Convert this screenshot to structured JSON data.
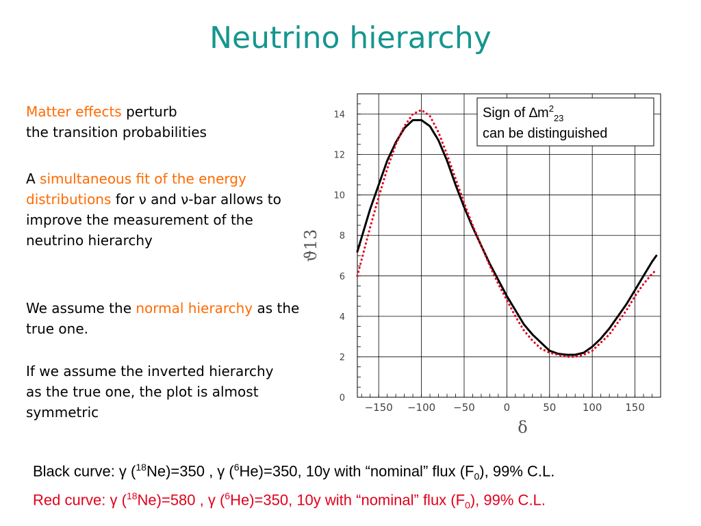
{
  "title": "Neutrino hierarchy",
  "left": {
    "p1": {
      "a": "Matter effects",
      "b": " perturb",
      "c": "the transition probabilities"
    },
    "p2": {
      "a": "A ",
      "b": "simultaneous fit of the energy distributions",
      "c": " for ν and ν-bar allows to improve the measurement of the neutrino hierarchy"
    },
    "p3": {
      "a": "We assume the ",
      "b": "normal hierarchy",
      "c": " as the true one."
    },
    "p4": {
      "a": "If we assume the inverted hierarchy as the true one, the plot is almost symmetric"
    }
  },
  "annotation": {
    "line1": "Sign of ∆m",
    "sup": "2",
    "sub": "23",
    "line2": "can be distinguished"
  },
  "bottom": {
    "black": {
      "prefix": "Black curve: γ (",
      "iso1": "18",
      "mid1": "Ne)=350 , γ (",
      "iso2": "6",
      "mid2": "He)=350, 10y with “nominal” flux (F",
      "sub": "0",
      "suffix": "), 99% C.L."
    },
    "red": {
      "prefix": "Red curve:   γ (",
      "iso1": "18",
      "mid1": "Ne)=580 , γ (",
      "iso2": "6",
      "mid2": "He)=350, 10y with “nominal” flux (F",
      "sub": "0",
      "suffix": "), 99% C.L."
    }
  },
  "colors": {
    "title": "#14968f",
    "accent": "#ff6a00",
    "red_curve": "#e0001b",
    "black_curve": "#000000"
  },
  "chart_data": {
    "type": "line",
    "xlabel": "δ",
    "ylabel": "ϑ13",
    "xlim": [
      -175,
      180
    ],
    "ylim": [
      0,
      15
    ],
    "xticks": [
      -150,
      -100,
      -50,
      0,
      50,
      100,
      150
    ],
    "xtick_labels": [
      "−150",
      "−100",
      "−50",
      "0",
      "50",
      "100",
      "150"
    ],
    "yticks": [
      0,
      2,
      4,
      6,
      8,
      10,
      12,
      14
    ],
    "grid": true,
    "series": [
      {
        "name": "Black curve",
        "color": "#000000",
        "style": "solid",
        "x": [
          -175,
          -160,
          -150,
          -140,
          -130,
          -120,
          -110,
          -100,
          -90,
          -80,
          -70,
          -60,
          -50,
          -40,
          -30,
          -20,
          -10,
          0,
          10,
          20,
          30,
          40,
          50,
          60,
          70,
          80,
          90,
          100,
          110,
          120,
          130,
          140,
          150,
          160,
          170,
          175
        ],
        "y": [
          7.2,
          9.3,
          10.5,
          11.7,
          12.6,
          13.3,
          13.7,
          13.7,
          13.4,
          12.7,
          11.7,
          10.5,
          9.4,
          8.4,
          7.5,
          6.6,
          5.8,
          5.0,
          4.3,
          3.6,
          3.1,
          2.7,
          2.3,
          2.15,
          2.1,
          2.1,
          2.2,
          2.5,
          2.9,
          3.4,
          4.0,
          4.6,
          5.3,
          6.0,
          6.7,
          7.0
        ]
      },
      {
        "name": "Red curve",
        "color": "#e0001b",
        "style": "dotted",
        "x": [
          -175,
          -160,
          -150,
          -140,
          -130,
          -120,
          -110,
          -100,
          -90,
          -80,
          -70,
          -60,
          -50,
          -40,
          -30,
          -20,
          -10,
          0,
          10,
          20,
          30,
          40,
          50,
          60,
          70,
          80,
          90,
          100,
          110,
          120,
          130,
          140,
          150,
          160,
          170,
          175
        ],
        "y": [
          6.0,
          8.4,
          9.9,
          11.3,
          12.5,
          13.4,
          14.0,
          14.2,
          13.9,
          13.1,
          12.0,
          10.8,
          9.6,
          8.5,
          7.5,
          6.5,
          5.6,
          4.8,
          4.0,
          3.3,
          2.8,
          2.4,
          2.2,
          2.1,
          2.0,
          2.0,
          2.1,
          2.3,
          2.7,
          3.1,
          3.7,
          4.3,
          5.0,
          5.6,
          6.1,
          6.3
        ]
      }
    ]
  }
}
